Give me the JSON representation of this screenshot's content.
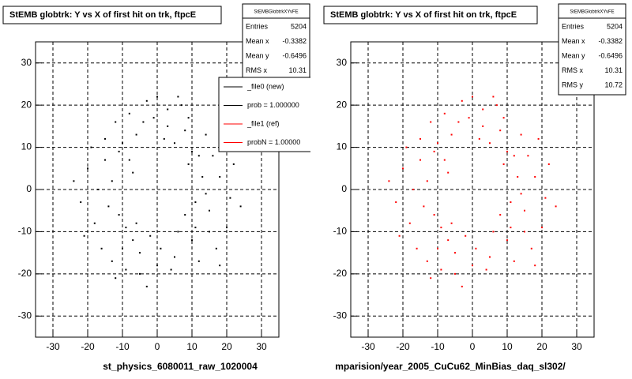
{
  "chart_data": [
    {
      "type": "scatter",
      "title": "StEMB globtrk: Y vs X of first hit on trk, ftpcE",
      "xlabel": "st_physics_6080011_raw_1020004",
      "stats": {
        "title": "StEMBGlobtrkXYvFE",
        "rows": [
          {
            "label": "Entries",
            "value": 5204
          },
          {
            "label": "Mean x",
            "value": -0.3382
          },
          {
            "label": "Mean y",
            "value": -0.6496
          },
          {
            "label": "RMS x",
            "value": 10.31
          },
          {
            "label": "RMS y",
            "value": 10.72
          }
        ]
      },
      "legend": [
        {
          "label": "_file0 (new)",
          "color": "#000000"
        },
        {
          "label": "prob = 1.000000",
          "color": "#000000"
        },
        {
          "label": "_file1 (ref)",
          "color": "#ff0000"
        },
        {
          "label": "probN = 1.00000",
          "color": "#ff0000"
        }
      ],
      "color": "#000000",
      "x": [
        -20,
        -18,
        -15,
        -12,
        -10,
        -8,
        -5,
        -3,
        0,
        3,
        5,
        8,
        10,
        12,
        15,
        18,
        20,
        22,
        -22,
        -19,
        -16,
        -13,
        -11,
        -9,
        -6,
        -2,
        2,
        6,
        9,
        11,
        14,
        17,
        19,
        -17,
        -14,
        -10,
        -7,
        -4,
        4,
        7,
        12,
        16,
        21,
        -21,
        -12,
        -8,
        8,
        13,
        18,
        -5,
        1,
        5,
        -1,
        -15,
        15,
        -9,
        9,
        -24,
        24,
        -6,
        6,
        10,
        -11,
        11,
        -3,
        3,
        0,
        -13,
        14,
        -7
      ],
      "y": [
        5,
        -8,
        12,
        16,
        -14,
        18,
        -20,
        21,
        -18,
        19,
        -16,
        14,
        -12,
        8,
        -5,
        3,
        -9,
        6,
        -3,
        10,
        -14,
        2,
        9,
        -9,
        13,
        -11,
        12,
        -10,
        6,
        -3,
        13,
        -14,
        12,
        0,
        -4,
        11,
        -12,
        16,
        -19,
        20,
        -17,
        8,
        -2,
        -11,
        -21,
        7,
        -6,
        3,
        -18,
        -15,
        -14,
        11,
        17,
        7,
        -10,
        -19,
        17,
        2,
        -4,
        -8,
        22,
        9,
        -6,
        -9,
        -23,
        15,
        22,
        -17,
        -1,
        4
      ],
      "xlim": [
        -35,
        35
      ],
      "ylim": [
        -35,
        35
      ],
      "xticks": [
        -30,
        -20,
        -10,
        0,
        10,
        20,
        30
      ],
      "yticks": [
        -30,
        -20,
        -10,
        0,
        10,
        20,
        30
      ],
      "grid": true
    },
    {
      "type": "scatter",
      "title": "StEMB globtrk: Y vs X of first hit on trk, ftpcE",
      "xlabel": "mparision/year_2005_CuCu62_MinBias_daq_sl302/",
      "stats": {
        "title": "StEMBGlobtrkXYvFE",
        "rows": [
          {
            "label": "Entries",
            "value": 5204
          },
          {
            "label": "Mean x",
            "value": -0.3382
          },
          {
            "label": "Mean y",
            "value": -0.6496
          },
          {
            "label": "RMS x",
            "value": 10.31
          },
          {
            "label": "RMS y",
            "value": 10.72
          }
        ]
      },
      "color": "#ff0000",
      "x": [
        -20,
        -18,
        -15,
        -12,
        -10,
        -8,
        -5,
        -3,
        0,
        3,
        5,
        8,
        10,
        12,
        15,
        18,
        20,
        22,
        -22,
        -19,
        -16,
        -13,
        -11,
        -9,
        -6,
        -2,
        2,
        6,
        9,
        11,
        14,
        17,
        19,
        -17,
        -14,
        -10,
        -7,
        -4,
        4,
        7,
        12,
        16,
        21,
        -21,
        -12,
        -8,
        8,
        13,
        18,
        -5,
        1,
        5,
        -1,
        -15,
        15,
        -9,
        9,
        -24,
        24,
        -6,
        6,
        10,
        -11,
        11,
        -3,
        3,
        0,
        -13,
        14,
        -7
      ],
      "y": [
        5,
        -8,
        12,
        16,
        -14,
        18,
        -20,
        21,
        -18,
        19,
        -16,
        14,
        -12,
        8,
        -5,
        3,
        -9,
        6,
        -3,
        10,
        -14,
        2,
        9,
        -9,
        13,
        -11,
        12,
        -10,
        6,
        -3,
        13,
        -14,
        12,
        0,
        -4,
        11,
        -12,
        16,
        -19,
        20,
        -17,
        8,
        -2,
        -11,
        -21,
        7,
        -6,
        3,
        -18,
        -15,
        -14,
        11,
        17,
        7,
        -10,
        -19,
        17,
        2,
        -4,
        -8,
        22,
        9,
        -6,
        -9,
        -23,
        15,
        22,
        -17,
        -1,
        4
      ],
      "xlim": [
        -35,
        35
      ],
      "ylim": [
        -35,
        35
      ],
      "xticks": [
        -30,
        -20,
        -10,
        0,
        10,
        20,
        30
      ],
      "yticks": [
        -30,
        -20,
        -10,
        0,
        10,
        20,
        30
      ],
      "grid": true
    }
  ]
}
